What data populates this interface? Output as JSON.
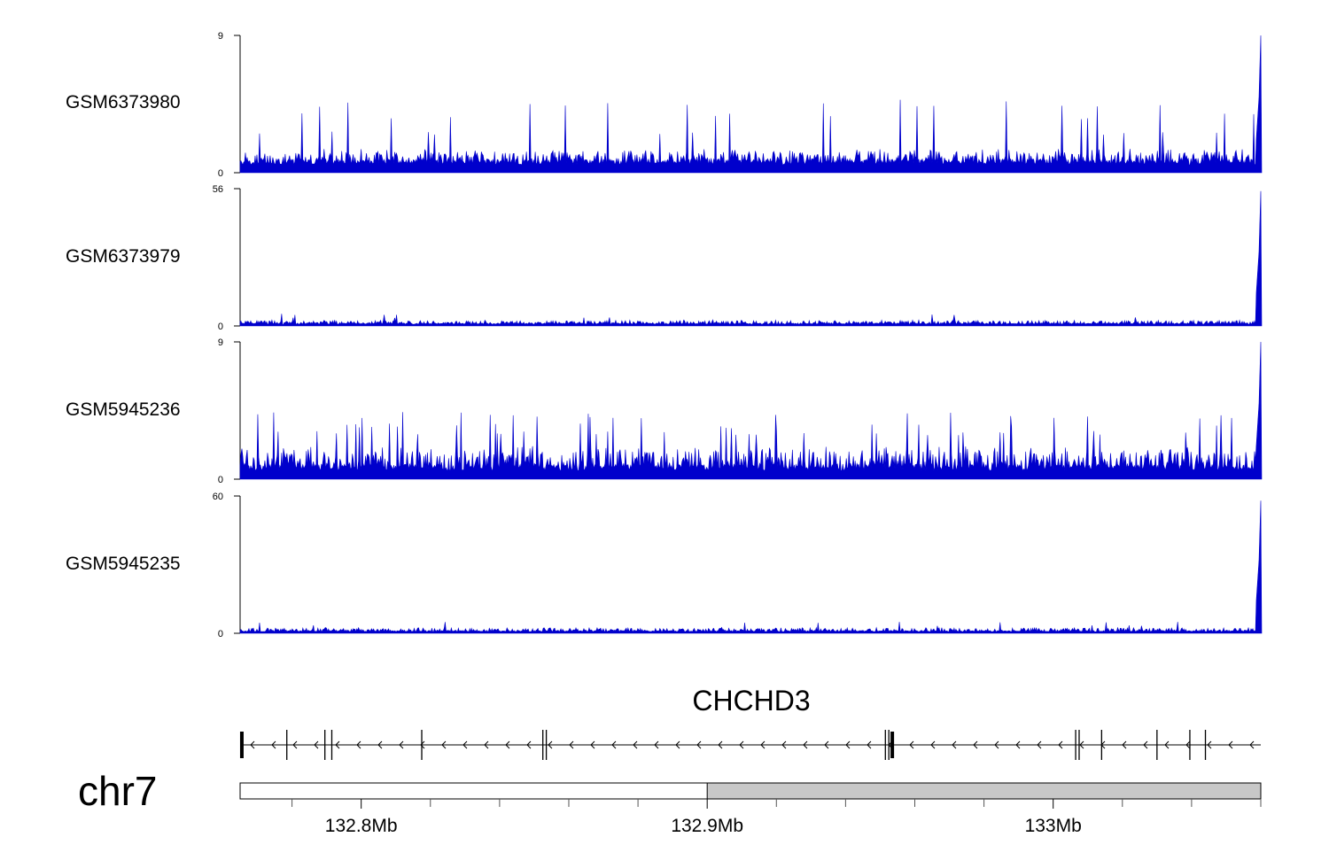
{
  "colors": {
    "signal": "#0000cc",
    "axis": "#000000",
    "ideogram_fill": "#c8c8c8",
    "background": "#ffffff"
  },
  "chart_data": {
    "type": "area",
    "chromosome": "chr7",
    "x_unit": "Mb",
    "xlim": [
      132.765,
      133.06
    ],
    "x_ticks": [
      {
        "value": 132.8,
        "label": "132.8Mb"
      },
      {
        "value": 132.9,
        "label": "132.9Mb"
      },
      {
        "value": 133.0,
        "label": "133Mb"
      }
    ],
    "x_minor_ticks": [
      132.76,
      132.78,
      132.82,
      132.84,
      132.86,
      132.88,
      132.92,
      132.94,
      132.96,
      132.98,
      133.02,
      133.04,
      133.06
    ],
    "tracks": [
      {
        "name": "GSM6373980",
        "ylim": [
          0,
          9
        ],
        "ytick_labels": [
          "9",
          "0"
        ],
        "baseline_level": 0.9,
        "noise_level": 1.6,
        "spike_levels": [
          2.7,
          3.9,
          4.8
        ],
        "spike_rate": 0.035,
        "end_peak": {
          "x": 133.06,
          "value": 9
        }
      },
      {
        "name": "GSM6373979",
        "ylim": [
          0,
          56
        ],
        "ytick_labels": [
          "56",
          "0"
        ],
        "baseline_level": 1.2,
        "noise_level": 2.5,
        "spike_levels": [
          3.5,
          5
        ],
        "spike_rate": 0.01,
        "end_peak": {
          "x": 133.06,
          "value": 55
        }
      },
      {
        "name": "GSM5945236",
        "ylim": [
          0,
          9
        ],
        "ytick_labels": [
          "9",
          "0"
        ],
        "baseline_level": 1.0,
        "noise_level": 2.2,
        "spike_levels": [
          3.2,
          3.7,
          4.4
        ],
        "spike_rate": 0.05,
        "end_peak": {
          "x": 133.06,
          "value": 9
        }
      },
      {
        "name": "GSM5945235",
        "ylim": [
          0,
          60
        ],
        "ytick_labels": [
          "60",
          "0"
        ],
        "baseline_level": 1.2,
        "noise_level": 2.6,
        "spike_levels": [
          3.5,
          5
        ],
        "spike_rate": 0.01,
        "end_peak": {
          "x": 133.06,
          "value": 58
        }
      }
    ],
    "gene": {
      "name": "CHCHD3",
      "strand": "-",
      "start": 132.765,
      "end": 133.06,
      "exons": [
        132.7655,
        132.7785,
        132.7895,
        132.7915,
        132.8175,
        132.8525,
        132.8535,
        132.9515,
        132.9525,
        132.9535,
        133.0065,
        133.0075,
        133.014,
        133.03,
        133.0395,
        133.044
      ]
    },
    "highlight_region": {
      "start": 132.9,
      "end": 133.06
    }
  }
}
